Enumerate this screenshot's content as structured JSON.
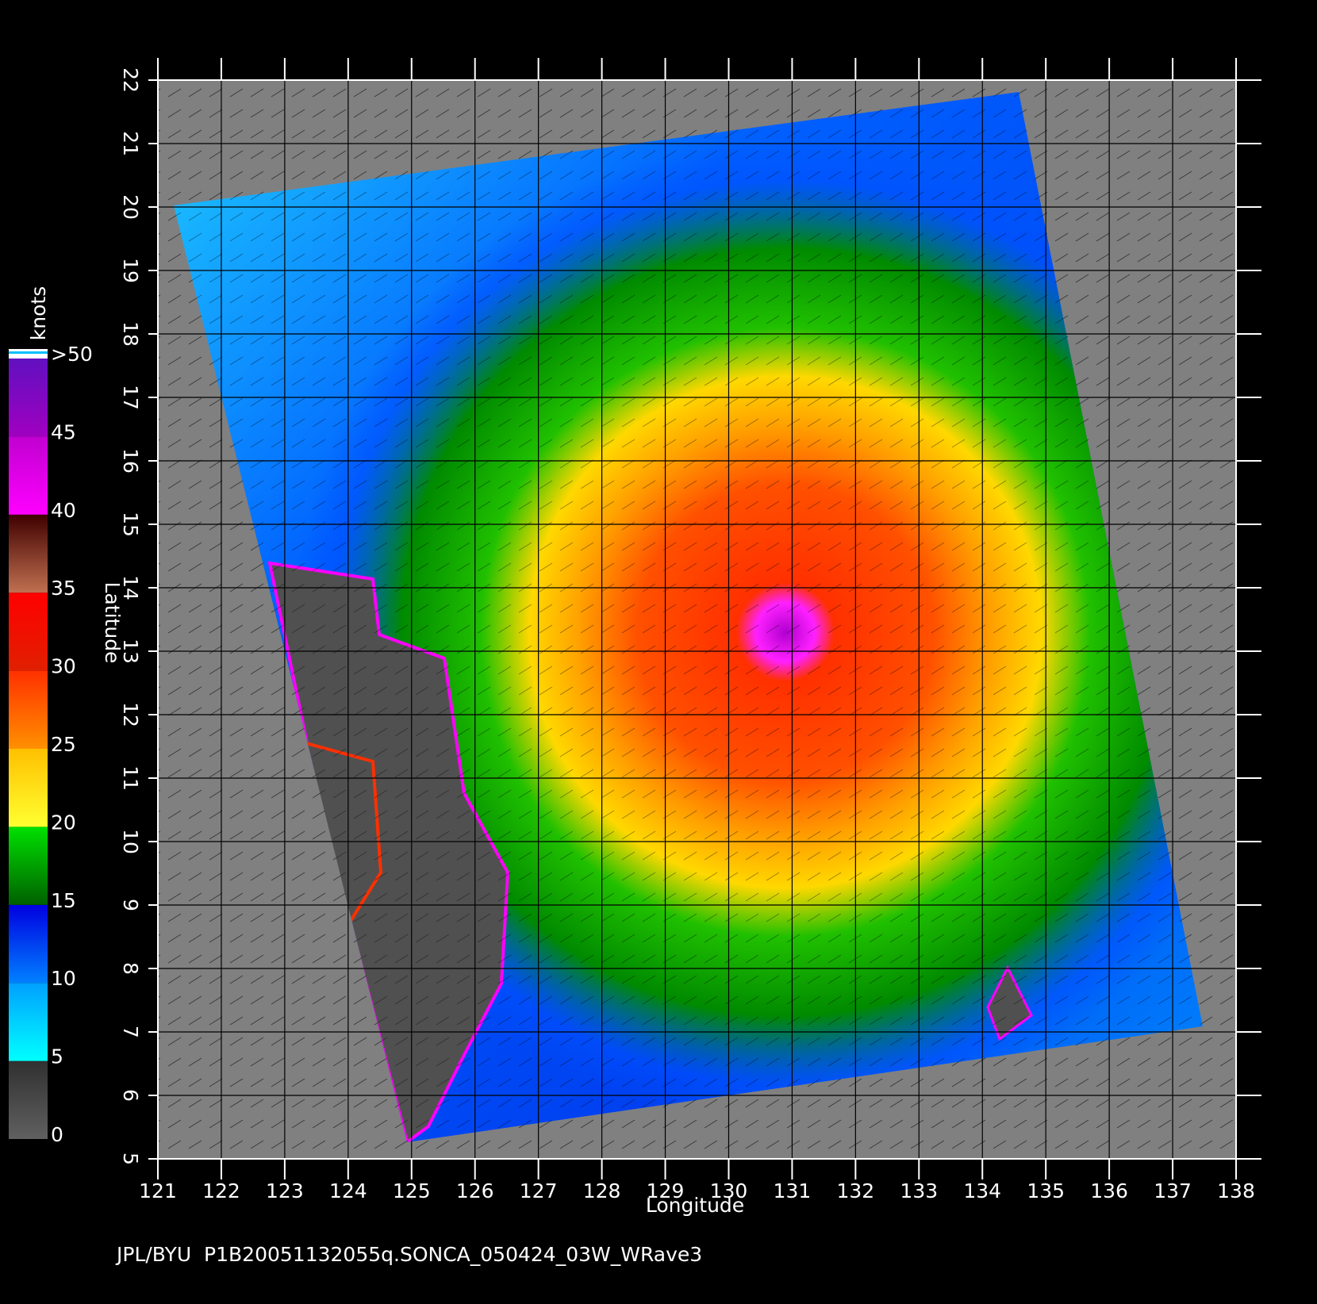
{
  "map": {
    "xlabel": "Longitude",
    "ylabel": "Latitude",
    "xlim": [
      121,
      138
    ],
    "ylim": [
      5,
      22
    ],
    "xticks": [
      121,
      122,
      123,
      124,
      125,
      126,
      127,
      128,
      129,
      130,
      131,
      132,
      133,
      134,
      135,
      136,
      137,
      138
    ],
    "yticks": [
      5,
      6,
      7,
      8,
      9,
      10,
      11,
      12,
      13,
      14,
      15,
      16,
      17,
      18,
      19,
      20,
      21,
      22
    ],
    "grid": true
  },
  "colorbar": {
    "label": "knots",
    "lim": [
      0,
      50
    ],
    "ticks": [
      0,
      5,
      10,
      15,
      20,
      25,
      30,
      35,
      40,
      45,
      {
        "value": 50,
        "label": ">50"
      }
    ],
    "colors": [
      [
        "#606060",
        "#303030"
      ],
      [
        "#00ffff",
        "#00a0ff"
      ],
      [
        "#0080ff",
        "#0000e0"
      ],
      [
        "#006000",
        "#00e000"
      ],
      [
        "#ffff30",
        "#ffc000"
      ],
      [
        "#ff9000",
        "#ff3000"
      ],
      [
        "#e02000",
        "#ff0000"
      ],
      [
        "#c07050",
        "#400000"
      ],
      [
        "#ff00ff",
        "#c000d0"
      ],
      [
        "#a000c0",
        "#6010c0"
      ]
    ]
  },
  "footer": "JPL/BYU  P1B20051132055q.SONCA_050424_03W_WRave3"
}
